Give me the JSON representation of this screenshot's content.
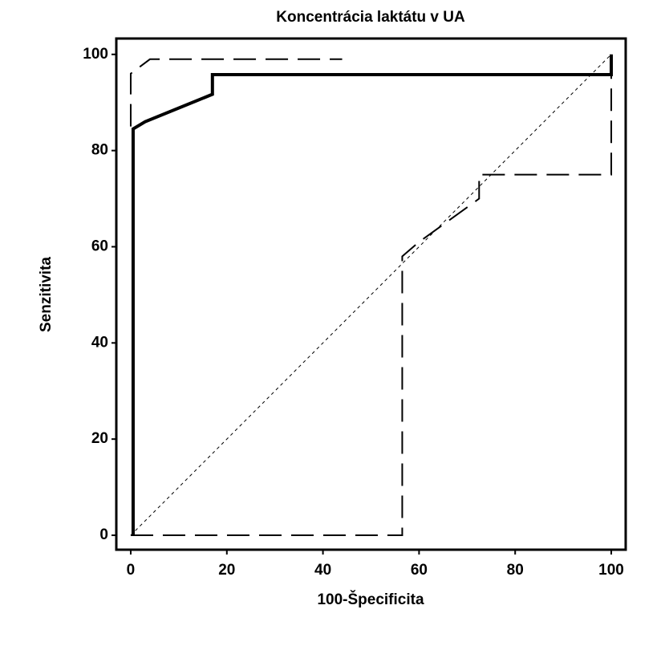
{
  "chart_data": {
    "type": "line",
    "title": "Koncentrácia laktátu v UA",
    "x_label": "100-Špecificita",
    "y_label": "Senzitivita",
    "xlim": [
      -3,
      103
    ],
    "ylim": [
      -3,
      103.3
    ],
    "xticks": [
      0,
      20,
      40,
      60,
      80,
      100
    ],
    "yticks": [
      0,
      20,
      40,
      60,
      80,
      100
    ],
    "grid": false,
    "series": [
      {
        "color": "#000000",
        "width": 1,
        "dash": "4 4",
        "x": [
          0,
          100
        ],
        "values": [
          0,
          100
        ]
      },
      {
        "color": "#000000",
        "width": 2,
        "dash": "28 12",
        "x": [
          0,
          0,
          4,
          44
        ],
        "values": [
          85,
          96,
          99,
          99
        ]
      },
      {
        "color": "#000000",
        "width": 2,
        "dash": "28 12",
        "x": [
          0,
          56.5,
          56.5,
          60,
          72.5,
          72.5,
          100,
          100
        ],
        "values": [
          0,
          0,
          58,
          61,
          70,
          75,
          75,
          100
        ]
      },
      {
        "color": "#000000",
        "width": 4,
        "dash": "none",
        "x": [
          0.5,
          0.5,
          3,
          17,
          17,
          100,
          100
        ],
        "values": [
          0,
          84.5,
          86,
          91.7,
          95.8,
          95.8,
          100
        ]
      }
    ]
  }
}
